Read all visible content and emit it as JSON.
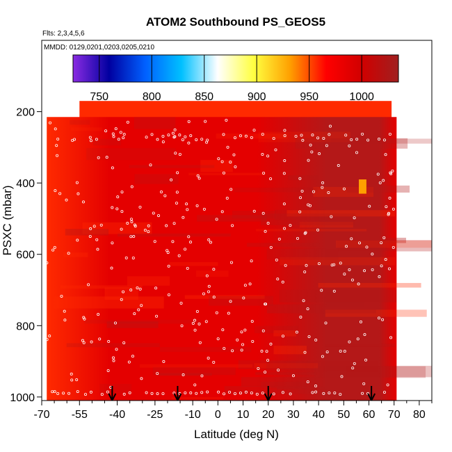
{
  "chart_data": {
    "type": "heatmap",
    "title": "ATOM2 Southbound PS_GEOS5",
    "annotations": [
      "Flts: 2,3,4,5,6",
      "MMDD: 0129,0201,0203,0205,0210"
    ],
    "xlabel": "Latitude (deg N)",
    "ylabel": "PSXC (mbar)",
    "xlim": [
      -70,
      85
    ],
    "ylim": [
      1010,
      0
    ],
    "x_major_ticks": [
      -70,
      -55,
      -40,
      -25,
      -10,
      0,
      10,
      20,
      30,
      40,
      50,
      60,
      70,
      80
    ],
    "x_tick_labels": [
      "-70",
      "-55",
      "-40",
      "-25",
      "-10",
      "0",
      "10",
      "20",
      "30",
      "40",
      "50",
      "60",
      "70",
      "80"
    ],
    "x_minor_ticks": [
      -65,
      -60,
      -50,
      -45,
      -35,
      -30,
      -20,
      -15,
      -5,
      5,
      15,
      25,
      35,
      45,
      55,
      65,
      75,
      85
    ],
    "y_ticks": [
      200,
      400,
      600,
      800,
      1000
    ],
    "y_tick_labels": [
      "200",
      "400",
      "600",
      "800",
      "1000"
    ],
    "colorbar": {
      "range": [
        725,
        1035
      ],
      "ticks": [
        750,
        800,
        850,
        900,
        950,
        1000
      ],
      "tick_labels": [
        "750",
        "800",
        "850",
        "900",
        "950",
        "1000"
      ]
    },
    "colors": {
      "stops": [
        "#8a2be2",
        "#0000a0",
        "#0060ff",
        "#00c0ff",
        "#ffffff",
        "#ffff40",
        "#ffa000",
        "#ff0000",
        "#d00000",
        "#a02020"
      ],
      "field_main": "#e40000",
      "field_dark": "#b41818",
      "field_bright": "#ff2a00"
    },
    "data_extent": {
      "lat_min": -68,
      "lat_max": 71,
      "top_pressure_high_lat_band": 170,
      "top_pressure_main": 215,
      "bottom_pressure": 1010
    },
    "values_summary": "Pressure field approx. 1000-1015 mbar across domain; slightly higher (darker) 45-60N",
    "arrow_latitudes": [
      -42,
      -16,
      20,
      61
    ]
  }
}
